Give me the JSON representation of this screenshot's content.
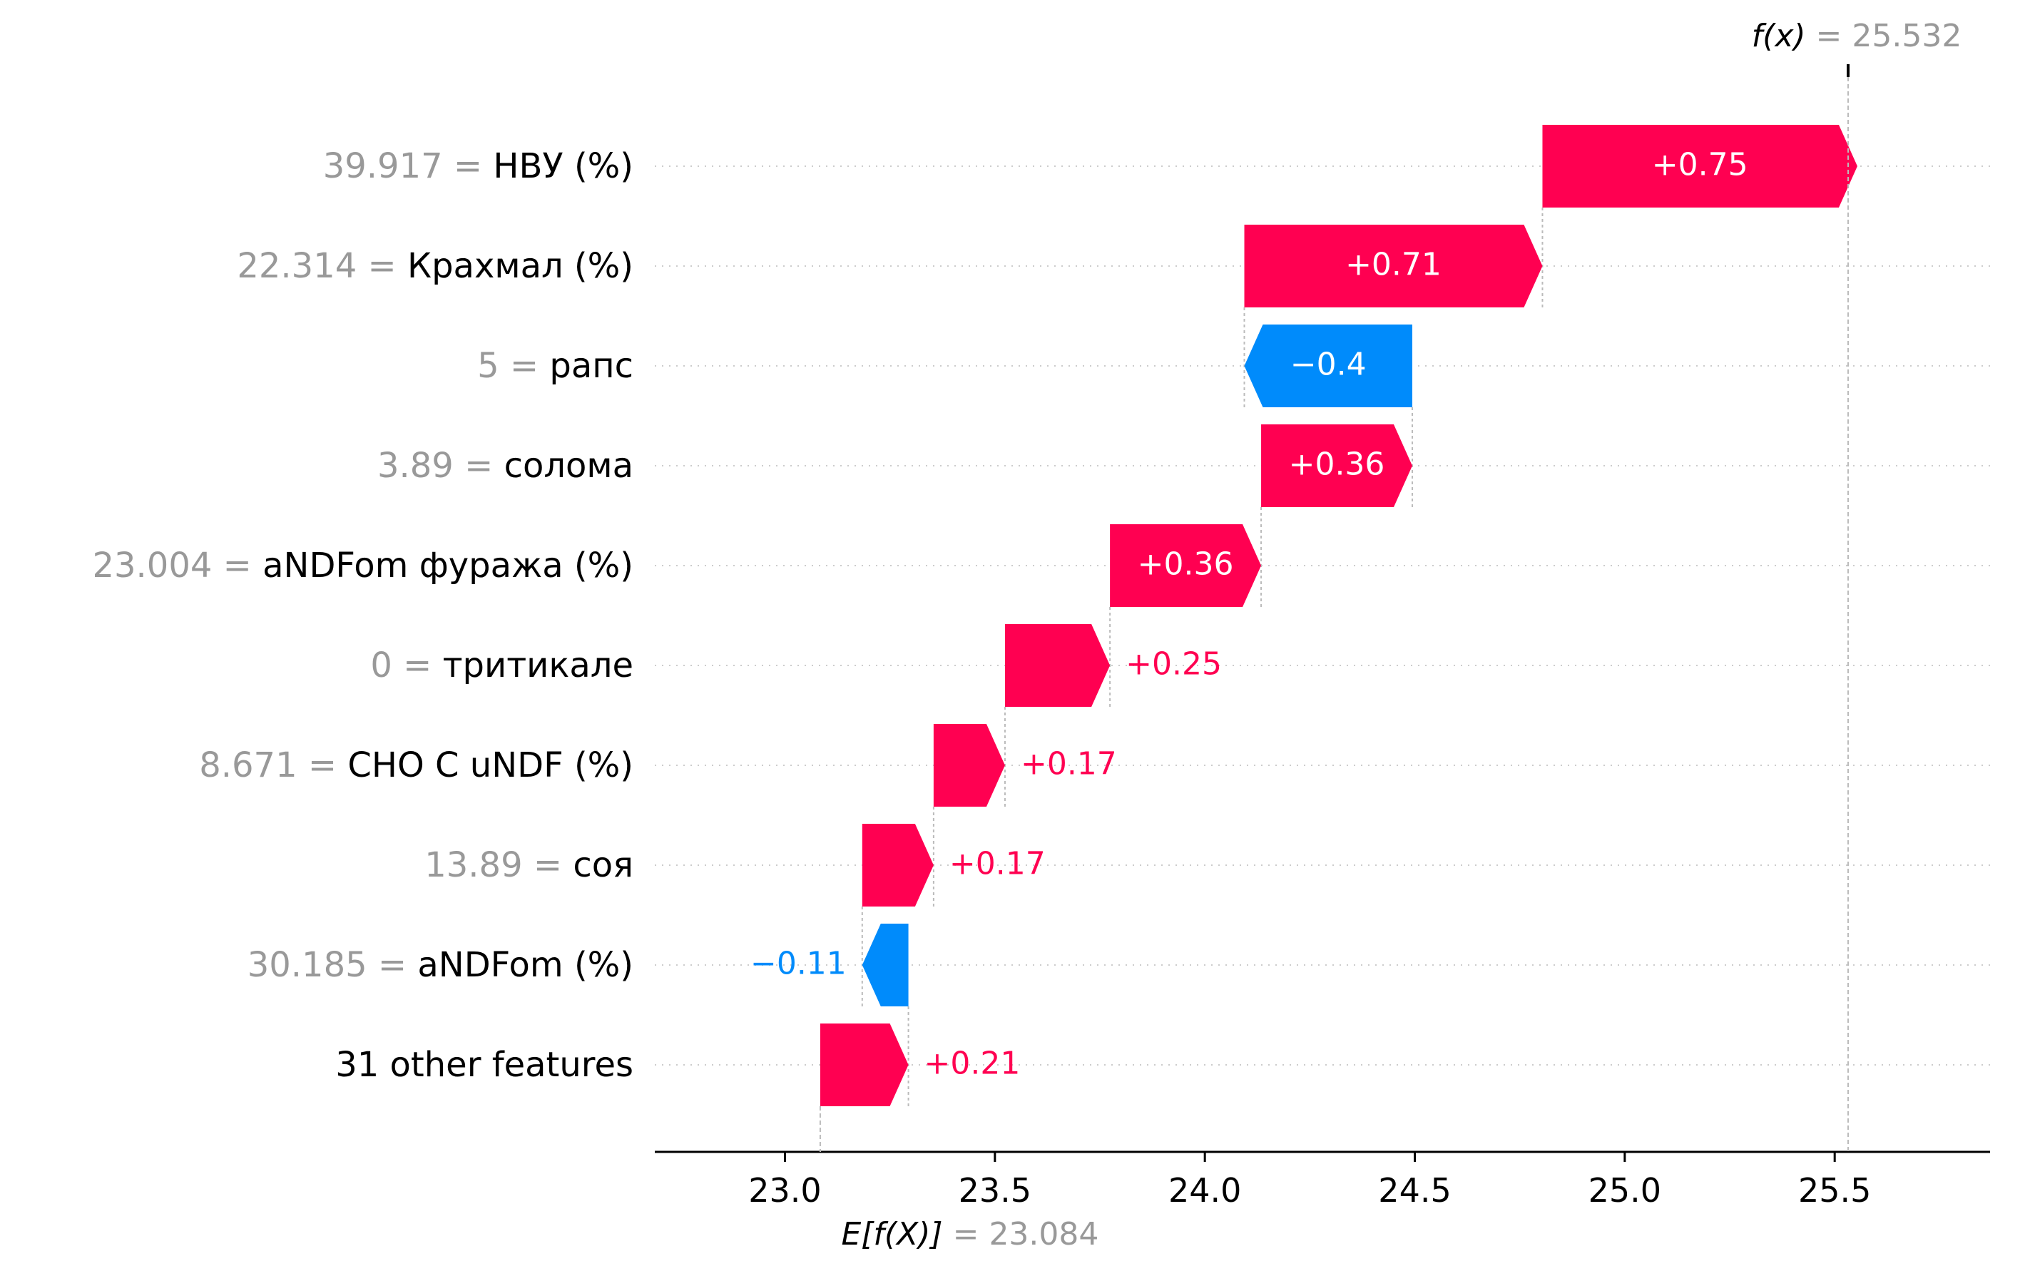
{
  "chart_data": {
    "type": "waterfall",
    "fx_label": "f(x)",
    "fx_value": "25.532",
    "ex_label": "E[f(X)]",
    "ex_value": "23.084",
    "base_value": 23.084,
    "final_value": 25.532,
    "features": [
      {
        "value": "39.917",
        "name": "НВУ (%)",
        "contribution": 0.75,
        "label": "+0.75"
      },
      {
        "value": "22.314",
        "name": "Крахмал (%)",
        "contribution": 0.71,
        "label": "+0.71"
      },
      {
        "value": "5",
        "name": "рапс",
        "contribution": -0.4,
        "label": "−0.4"
      },
      {
        "value": "3.89",
        "name": "солома",
        "contribution": 0.36,
        "label": "+0.36"
      },
      {
        "value": "23.004",
        "name": "aNDFom фуража (%)",
        "contribution": 0.36,
        "label": "+0.36"
      },
      {
        "value": "0",
        "name": "тритикале",
        "contribution": 0.25,
        "label": "+0.25"
      },
      {
        "value": "8.671",
        "name": "CHO C uNDF (%)",
        "contribution": 0.17,
        "label": "+0.17"
      },
      {
        "value": "13.89",
        "name": "соя",
        "contribution": 0.17,
        "label": "+0.17"
      },
      {
        "value": "30.185",
        "name": "aNDFom (%)",
        "contribution": -0.11,
        "label": "−0.11"
      },
      {
        "value": "",
        "name": "31 other features",
        "contribution": 0.21,
        "label": "+0.21"
      }
    ],
    "xlim": [
      22.69,
      25.87
    ],
    "x_ticks": [
      23.0,
      23.5,
      24.0,
      24.5,
      25.0,
      25.5
    ],
    "x_tick_labels": [
      "23.0",
      "23.5",
      "24.0",
      "24.5",
      "25.0",
      "25.5"
    ],
    "colors": {
      "positive": "#ff0051",
      "negative": "#008bfb"
    }
  }
}
